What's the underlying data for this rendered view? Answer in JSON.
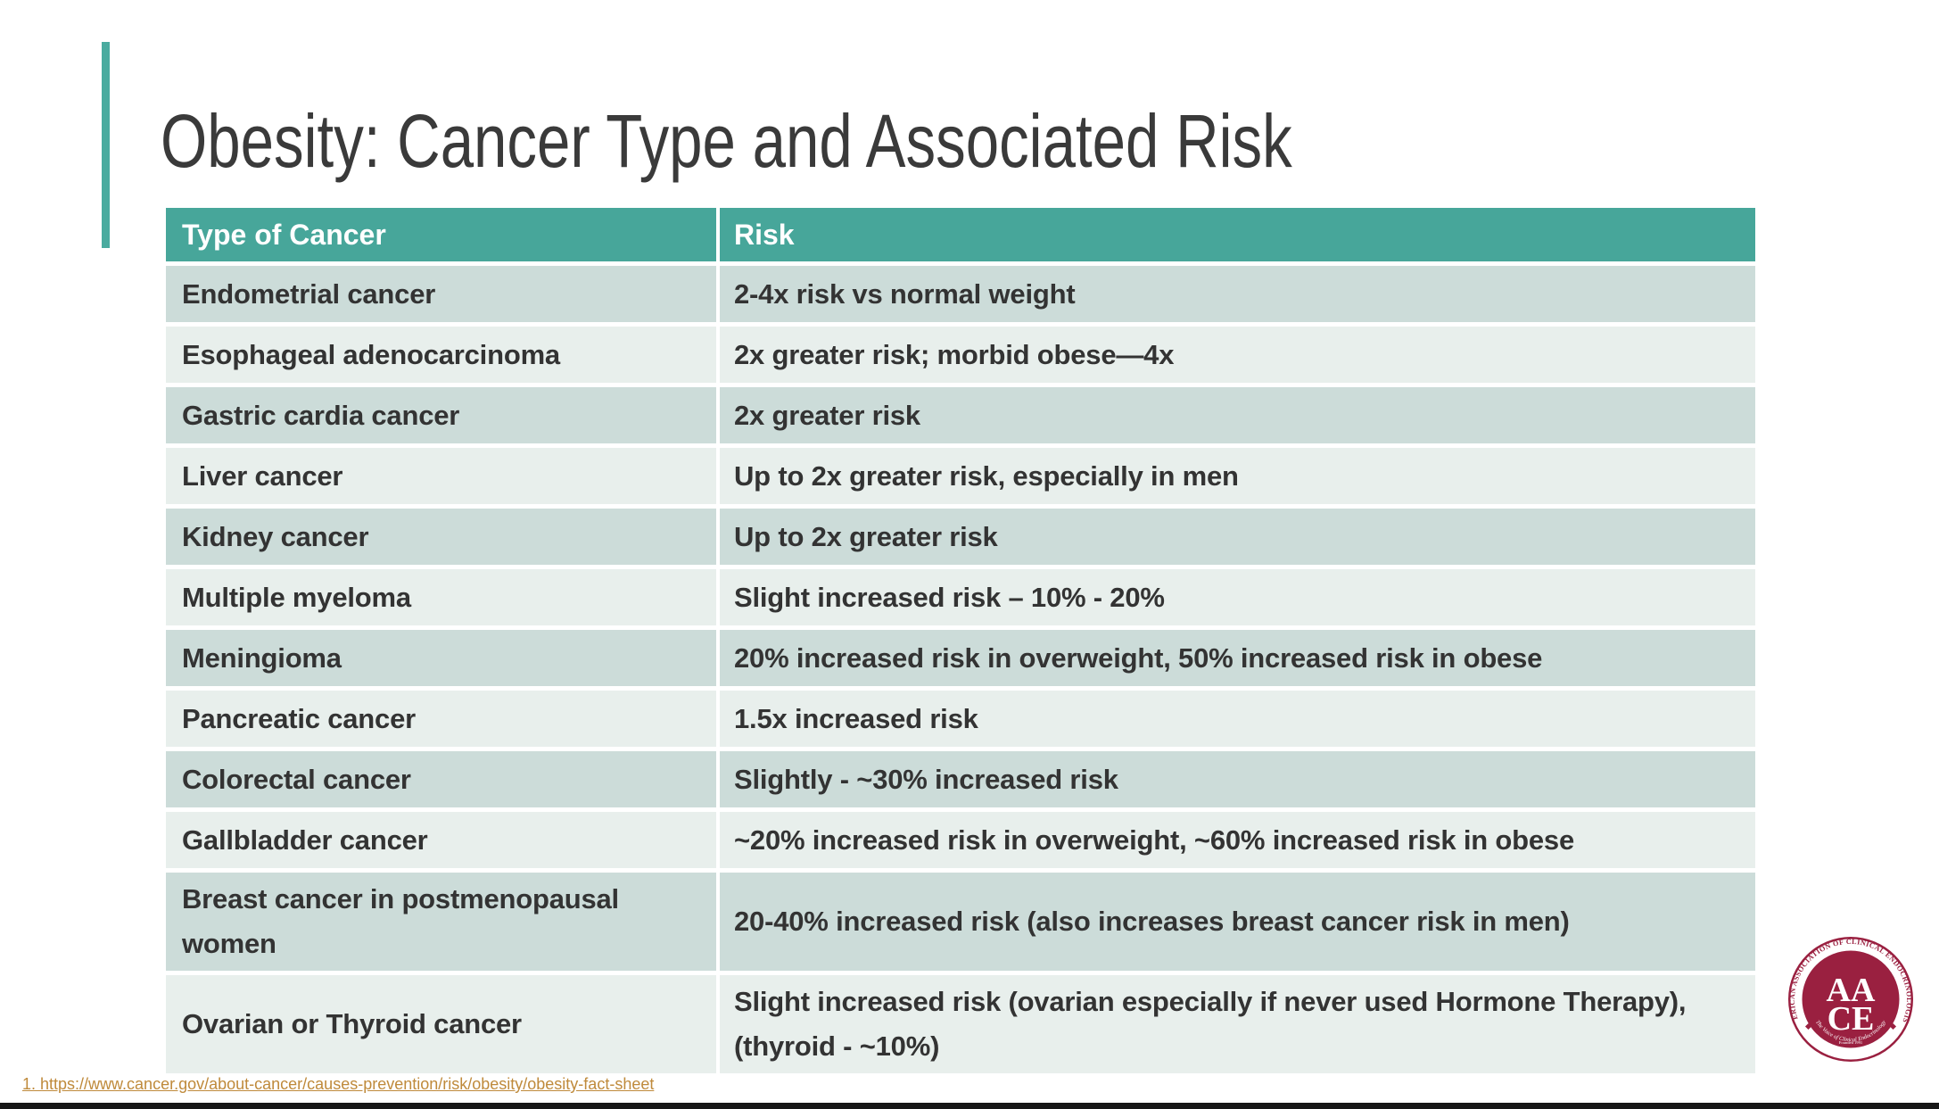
{
  "theme": {
    "accent-teal": "#4aab9f",
    "header-teal": "#47a69a",
    "row-dark": "#ccdcd9",
    "row-light": "#e8efec",
    "title-color": "#3a3a3a",
    "cell-text": "#333333",
    "link-color": "#bf8a3b",
    "logo-maroon": "#9a2040",
    "bottom-bar": "#161616"
  },
  "slide": {
    "title": "Obesity: Cancer Type and Associated Risk",
    "footer_link": "1. https://www.cancer.gov/about-cancer/causes-prevention/risk/obesity/obesity-fact-sheet"
  },
  "table": {
    "headers": [
      "Type of Cancer",
      "Risk"
    ],
    "rows": [
      {
        "type": "Endometrial cancer",
        "risk": "2-4x risk vs normal weight"
      },
      {
        "type": "Esophageal adenocarcinoma",
        "risk": "2x greater risk; morbid obese—4x"
      },
      {
        "type": "Gastric cardia cancer",
        "risk": "2x greater risk"
      },
      {
        "type": "Liver cancer",
        "risk": "Up to 2x greater risk, especially in men"
      },
      {
        "type": "Kidney cancer",
        "risk": "Up to 2x greater risk"
      },
      {
        "type": "Multiple myeloma",
        "risk": "Slight increased risk – 10% - 20%"
      },
      {
        "type": "Meningioma",
        "risk": "20% increased risk in overweight, 50% increased risk in obese"
      },
      {
        "type": "Pancreatic cancer",
        "risk": "1.5x increased risk"
      },
      {
        "type": "Colorectal cancer",
        "risk": "Slightly - ~30% increased risk"
      },
      {
        "type": "Gallbladder cancer",
        "risk": "~20% increased risk in overweight, ~60% increased risk in obese"
      },
      {
        "type": "Breast cancer in postmenopausal women",
        "risk": "20-40% increased risk (also increases breast cancer risk in men)"
      },
      {
        "type": "Ovarian or Thyroid cancer",
        "risk": "Slight increased risk (ovarian especially if never used Hormone Therapy), (thyroid - ~10%)"
      }
    ]
  },
  "logo": {
    "ring_text": "AMERICAN ASSOCIATION OF CLINICAL ENDOCRINOLOGISTS",
    "acronym_line1": "AA",
    "acronym_line2": "CE",
    "tagline": "The Voice of Clinical Endocrinology",
    "founded": "Founded 1991"
  }
}
